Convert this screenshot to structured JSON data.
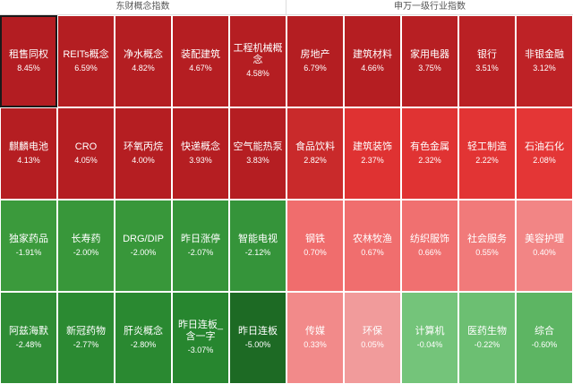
{
  "left_panel": {
    "title": "东财概念指数",
    "tiles": [
      {
        "name": "租售同权",
        "value": "8.45%",
        "color": "#b31d22",
        "selected": true
      },
      {
        "name": "REITs概念",
        "value": "6.59%",
        "color": "#b41e22"
      },
      {
        "name": "净水概念",
        "value": "4.82%",
        "color": "#b41e22"
      },
      {
        "name": "装配建筑",
        "value": "4.67%",
        "color": "#b51e22"
      },
      {
        "name": "工程机械概念",
        "value": "4.58%",
        "color": "#b51e22"
      },
      {
        "name": "麒麟电池",
        "value": "4.13%",
        "color": "#b51e22"
      },
      {
        "name": "CRO",
        "value": "4.05%",
        "color": "#b51e22"
      },
      {
        "name": "环氧丙烷",
        "value": "4.00%",
        "color": "#b51e22"
      },
      {
        "name": "快递概念",
        "value": "3.93%",
        "color": "#b51e22"
      },
      {
        "name": "空气能热泵",
        "value": "3.83%",
        "color": "#b51e22"
      },
      {
        "name": "独家药品",
        "value": "-1.91%",
        "color": "#3b9a3c"
      },
      {
        "name": "长寿药",
        "value": "-2.00%",
        "color": "#38973a"
      },
      {
        "name": "DRG/DIP",
        "value": "-2.00%",
        "color": "#38973a"
      },
      {
        "name": "昨日涨停",
        "value": "-2.07%",
        "color": "#36953a"
      },
      {
        "name": "智能电视",
        "value": "-2.12%",
        "color": "#35943a"
      },
      {
        "name": "阿兹海默",
        "value": "-2.48%",
        "color": "#2f8d35"
      },
      {
        "name": "新冠药物",
        "value": "-2.77%",
        "color": "#2b8a32"
      },
      {
        "name": "肝炎概念",
        "value": "-2.80%",
        "color": "#2a8931"
      },
      {
        "name": "昨日连板_含一字",
        "value": "-3.07%",
        "color": "#27862f"
      },
      {
        "name": "昨日连板",
        "value": "-5.00%",
        "color": "#1d6a24"
      }
    ]
  },
  "right_panel": {
    "title": "申万一级行业指数",
    "tiles": [
      {
        "name": "房地产",
        "value": "6.79%",
        "color": "#b41e22"
      },
      {
        "name": "建筑材料",
        "value": "4.66%",
        "color": "#b51e22"
      },
      {
        "name": "家用电器",
        "value": "3.75%",
        "color": "#b71f23"
      },
      {
        "name": "银行",
        "value": "3.51%",
        "color": "#ba2024"
      },
      {
        "name": "非银金融",
        "value": "3.12%",
        "color": "#be2226"
      },
      {
        "name": "食品饮料",
        "value": "2.82%",
        "color": "#c92a2b"
      },
      {
        "name": "建筑装饰",
        "value": "2.37%",
        "color": "#df3232"
      },
      {
        "name": "有色金属",
        "value": "2.32%",
        "color": "#e03333"
      },
      {
        "name": "轻工制造",
        "value": "2.22%",
        "color": "#e23434"
      },
      {
        "name": "石油石化",
        "value": "2.08%",
        "color": "#e43636"
      },
      {
        "name": "钢铁",
        "value": "0.70%",
        "color": "#f06d6d"
      },
      {
        "name": "农林牧渔",
        "value": "0.67%",
        "color": "#f06e6e"
      },
      {
        "name": "纺织服饰",
        "value": "0.66%",
        "color": "#f07070"
      },
      {
        "name": "社会服务",
        "value": "0.55%",
        "color": "#f17a7a"
      },
      {
        "name": "美容护理",
        "value": "0.40%",
        "color": "#f28585"
      },
      {
        "name": "传媒",
        "value": "0.33%",
        "color": "#f28a8a"
      },
      {
        "name": "环保",
        "value": "0.05%",
        "color": "#f19b9b"
      },
      {
        "name": "计算机",
        "value": "-0.04%",
        "color": "#74c47a"
      },
      {
        "name": "医药生物",
        "value": "-0.22%",
        "color": "#6cbf72"
      },
      {
        "name": "综合",
        "value": "-0.60%",
        "color": "#5db563"
      }
    ]
  }
}
